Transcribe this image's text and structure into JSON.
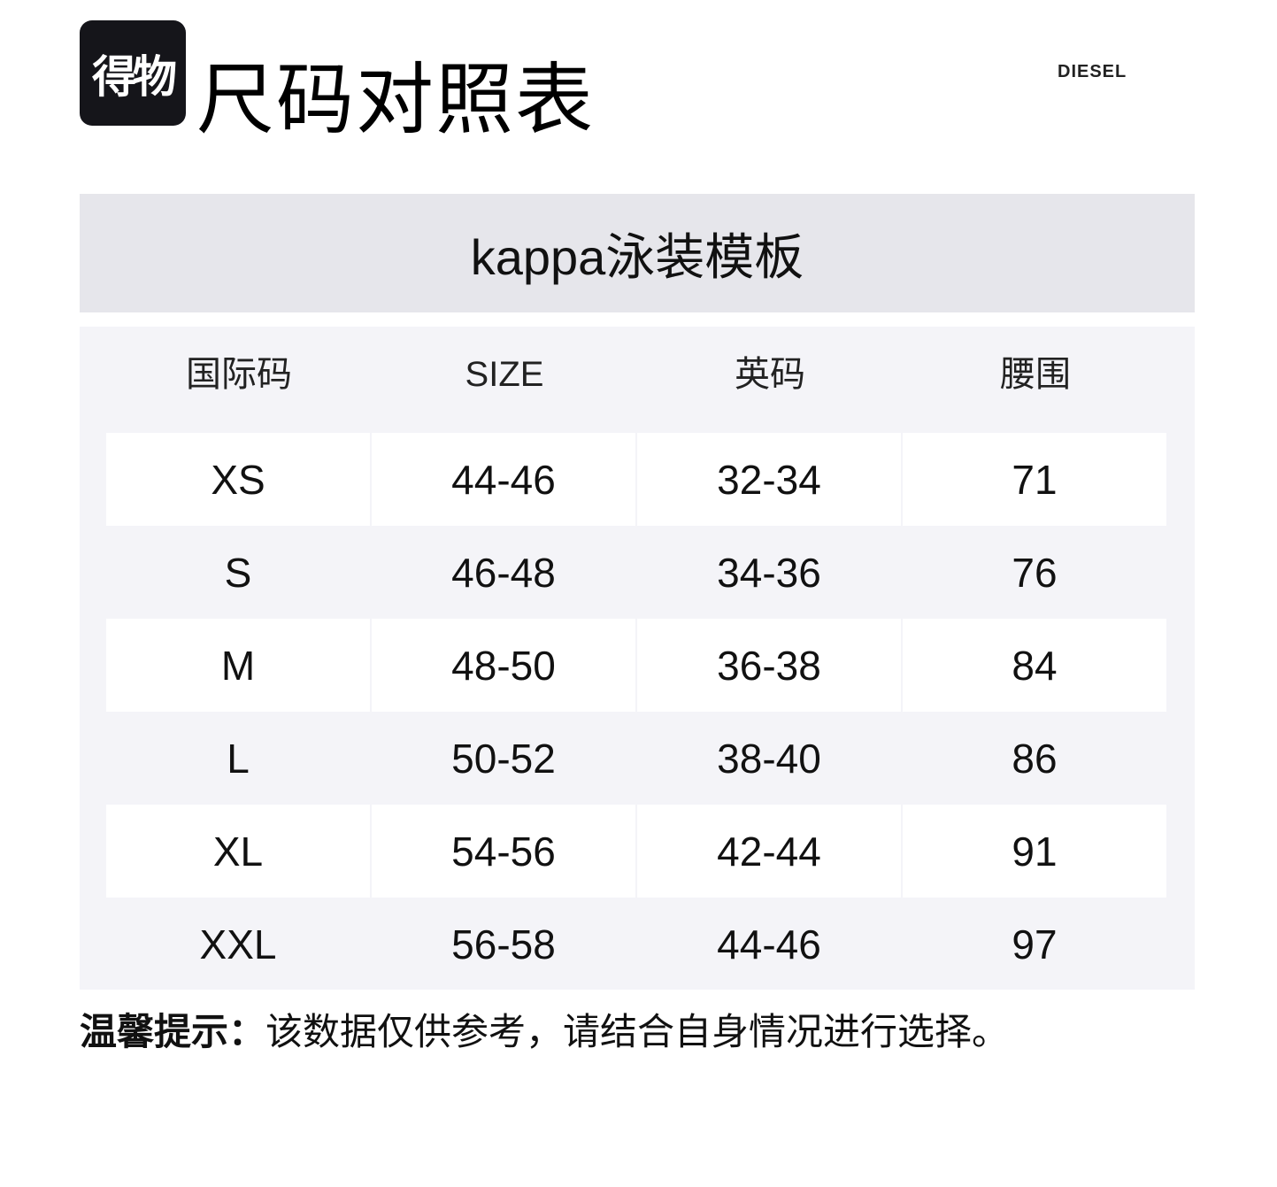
{
  "logo": {
    "text": "得物"
  },
  "header": {
    "title": "尺码对照表",
    "brand": "DIESEL"
  },
  "chart_title": "kappa泳装模板",
  "table": {
    "columns": [
      "国际码",
      "SIZE",
      "英码",
      "腰围"
    ],
    "rows": [
      [
        "XS",
        "44-46",
        "32-34",
        "71"
      ],
      [
        "S",
        "46-48",
        "34-36",
        "76"
      ],
      [
        "M",
        "48-50",
        "36-38",
        "84"
      ],
      [
        "L",
        "50-52",
        "38-40",
        "86"
      ],
      [
        "XL",
        "54-56",
        "42-44",
        "91"
      ],
      [
        "XXL",
        "56-58",
        "44-46",
        "97"
      ]
    ]
  },
  "note": {
    "label": "温馨提示：",
    "text": "该数据仅供参考，请结合自身情况进行选择。"
  },
  "colors": {
    "title_panel": "#e6e6eb",
    "table_panel": "#f4f4f8",
    "logo_bg": "#15151a"
  }
}
